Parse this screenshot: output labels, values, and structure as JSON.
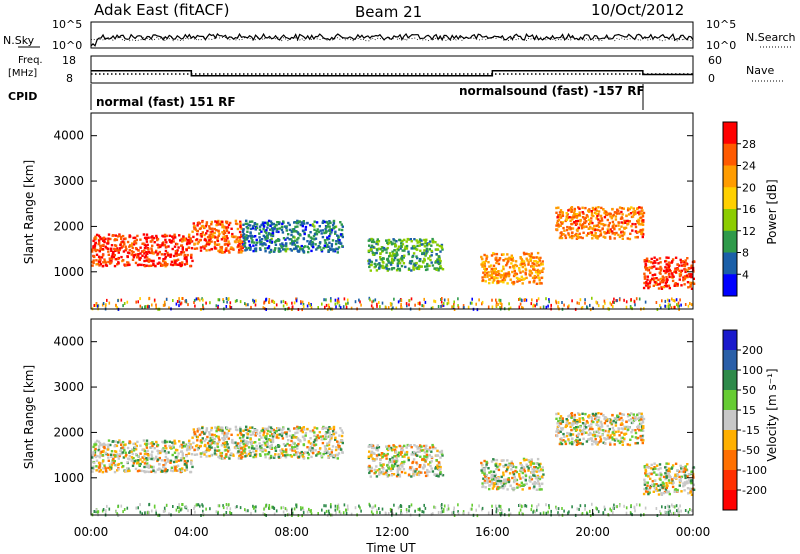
{
  "header": {
    "station": "Adak East (fitACF)",
    "beam": "Beam 21",
    "date": "10/Oct/2012"
  },
  "panels": {
    "noise": {
      "left_label": "N.Sky",
      "right_label": "N.Search",
      "left_ticks": [
        "10^5",
        "10^0"
      ],
      "right_ticks": [
        "10^5",
        "10^0"
      ]
    },
    "freq": {
      "left_label_1": "Freq.",
      "left_label_2": "[MHz]",
      "right_label": "Nave",
      "left_ticks": [
        "18",
        "8"
      ],
      "right_ticks": [
        "60",
        "0"
      ]
    },
    "cpid": {
      "label": "CPID",
      "mode_1": "normal (fast) 151 RF",
      "mode_2": "normalsound (fast) -157 RF"
    },
    "power": {
      "ylabel": "Slant Range [km]",
      "yticks": [
        "4000",
        "3000",
        "2000",
        "1000"
      ],
      "colorbar_label": "Power [dB]",
      "colorbar_ticks": [
        "28",
        "24",
        "20",
        "16",
        "12",
        "8",
        "4"
      ],
      "colorbar_colors": [
        "#ff0000",
        "#ff5a00",
        "#ff9c00",
        "#ffd000",
        "#8ccd00",
        "#2e9a4a",
        "#1a5fa8",
        "#0000ff"
      ]
    },
    "velocity": {
      "ylabel": "Slant Range [km]",
      "yticks": [
        "4000",
        "3000",
        "2000",
        "1000"
      ],
      "colorbar_label": "Velocity [m s⁻¹]",
      "colorbar_ticks": [
        "200",
        "100",
        "50",
        "15",
        "-15",
        "-50",
        "-100",
        "-200"
      ],
      "colorbar_colors": [
        "#1a1acc",
        "#2a5fa8",
        "#2e8a4a",
        "#66cc33",
        "#c8c8c8",
        "#ffb000",
        "#ff7000",
        "#ff3000",
        "#ff0000"
      ]
    }
  },
  "xaxis": {
    "label": "Time UT",
    "ticks": [
      "00:00",
      "04:00",
      "08:00",
      "12:00",
      "16:00",
      "20:00",
      "00:00"
    ]
  },
  "chart_data": [
    {
      "type": "line",
      "title": "Freq. [MHz]",
      "x_unit": "hours UT",
      "series": [
        {
          "name": "Freq. [MHz]",
          "x": [
            0,
            4,
            4,
            16,
            16,
            22,
            22,
            24
          ],
          "values": [
            12.5,
            12.5,
            10.5,
            10.5,
            12.5,
            12.5,
            11,
            11
          ]
        }
      ],
      "ylim": [
        8,
        18
      ]
    },
    {
      "type": "heatmap",
      "title": "Power [dB]",
      "xlabel": "Time UT",
      "ylabel": "Slant Range [km]",
      "xlim": [
        0,
        24
      ],
      "ylim": [
        180,
        4500
      ],
      "clim": [
        0,
        30
      ],
      "echo_regions": [
        {
          "t_start": 0,
          "t_end": 4,
          "range_km": 1500,
          "power_db": 28
        },
        {
          "t_start": 4,
          "t_end": 6,
          "range_km": 1800,
          "power_db": 26
        },
        {
          "t_start": 6,
          "t_end": 10,
          "range_km": 1800,
          "power_db": 6
        },
        {
          "t_start": 11,
          "t_end": 14,
          "range_km": 1400,
          "power_db": 10
        },
        {
          "t_start": 15.5,
          "t_end": 18,
          "range_km": 1100,
          "power_db": 22
        },
        {
          "t_start": 18.5,
          "t_end": 22,
          "range_km": 2100,
          "power_db": 24
        },
        {
          "t_start": 22,
          "t_end": 24,
          "range_km": 1000,
          "power_db": 28
        }
      ]
    },
    {
      "type": "heatmap",
      "title": "Velocity [m s⁻¹]",
      "xlabel": "Time UT",
      "ylabel": "Slant Range [km]",
      "xlim": [
        0,
        24
      ],
      "ylim": [
        180,
        4500
      ],
      "clim": [
        -200,
        200
      ]
    }
  ]
}
